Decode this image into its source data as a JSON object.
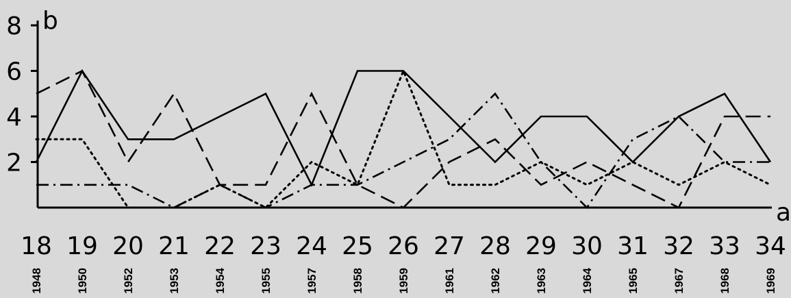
{
  "chart_data": {
    "type": "line",
    "title": "",
    "xlabel": "a",
    "ylabel": "b",
    "ylim": [
      0,
      8
    ],
    "yticks": [
      "8",
      "6",
      "4",
      "2"
    ],
    "x": [
      "18",
      "19",
      "20",
      "21",
      "22",
      "23",
      "24",
      "25",
      "26",
      "27",
      "28",
      "29",
      "30",
      "31",
      "32",
      "33",
      "34"
    ],
    "years": [
      "1948",
      "1950",
      "1952",
      "1953",
      "1954",
      "1955",
      "1957",
      "1958",
      "1959",
      "1961",
      "1962",
      "1963",
      "1964",
      "1965",
      "1967",
      "1968",
      "1969"
    ],
    "grid": false,
    "legend": "none",
    "series": [
      {
        "style": "solid",
        "values": [
          2,
          6,
          3,
          3,
          4,
          5,
          1,
          6,
          6,
          4,
          2,
          4,
          4,
          2,
          4,
          5,
          2
        ]
      },
      {
        "style": "dashed",
        "values": [
          5,
          6,
          2,
          5,
          1,
          1,
          5,
          1,
          0,
          2,
          3,
          1,
          2,
          1,
          0,
          4,
          4
        ]
      },
      {
        "style": "dotted",
        "values": [
          3,
          3,
          0,
          0,
          1,
          0,
          2,
          1,
          6,
          1,
          1,
          2,
          1,
          2,
          1,
          2,
          1
        ]
      },
      {
        "style": "dash-dot",
        "values": [
          1,
          1,
          1,
          0,
          1,
          0,
          1,
          1,
          2,
          3,
          5,
          2,
          0,
          3,
          4,
          2,
          2
        ]
      }
    ],
    "colors": {
      "line": "#000000",
      "background": "#d9d9d9"
    }
  }
}
